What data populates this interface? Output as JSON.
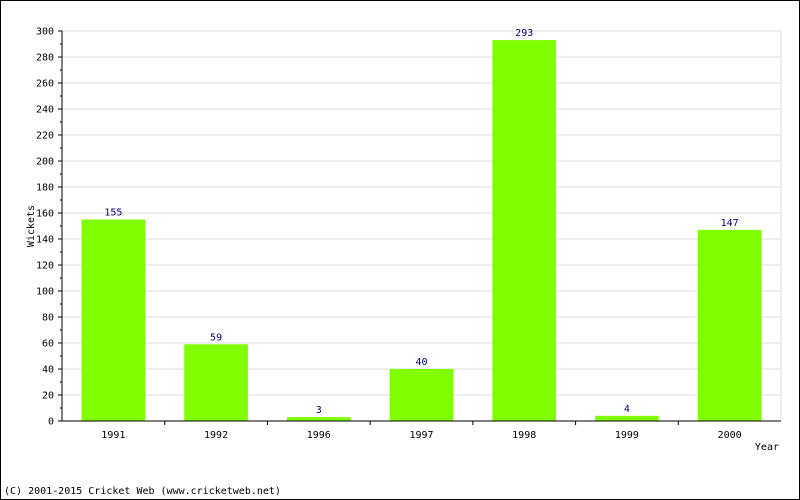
{
  "chart_data": {
    "type": "bar",
    "categories": [
      "1991",
      "1992",
      "1996",
      "1997",
      "1998",
      "1999",
      "2000"
    ],
    "values": [
      155,
      59,
      3,
      40,
      293,
      4,
      147
    ],
    "title": "",
    "xlabel": "Year",
    "ylabel": "Wickets",
    "ylim": [
      0,
      300
    ],
    "ytick_step": 20,
    "grid": true,
    "legend": "none",
    "colors": {
      "bar": "#80ff00",
      "grid": "#dddddd",
      "axis": "#000000",
      "value_label": "#000080"
    }
  },
  "footer": {
    "copyright": "(C) 2001-2015 Cricket Web (www.cricketweb.net)"
  }
}
